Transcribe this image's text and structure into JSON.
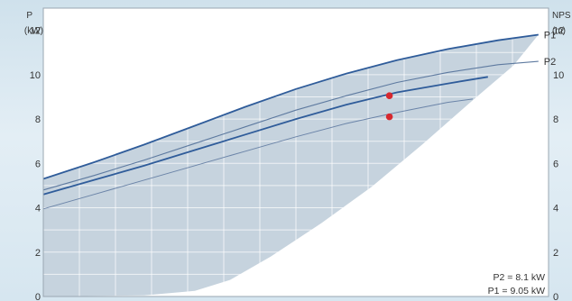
{
  "chart_data": {
    "type": "line",
    "left_axis": {
      "label_line1": "P",
      "label_line2": "(kW)",
      "ticks": [
        "0",
        "2",
        "4",
        "6",
        "8",
        "10",
        "12"
      ],
      "ylim": [
        0,
        13
      ]
    },
    "right_axis": {
      "label_line1": "NPS",
      "label_line2": "(m)",
      "ticks": [
        "0",
        "2",
        "4",
        "6",
        "8",
        "10",
        "12"
      ],
      "ylim": [
        0,
        13
      ]
    },
    "xlim": [
      0,
      1
    ],
    "grid": true,
    "envelope": {
      "upper": [
        [
          0,
          5.3
        ],
        [
          0.1,
          6.05
        ],
        [
          0.2,
          6.85
        ],
        [
          0.3,
          7.7
        ],
        [
          0.4,
          8.55
        ],
        [
          0.5,
          9.35
        ],
        [
          0.6,
          10.05
        ],
        [
          0.7,
          10.65
        ],
        [
          0.8,
          11.15
        ],
        [
          0.9,
          11.55
        ],
        [
          0.98,
          11.8
        ]
      ],
      "lower": [
        [
          0,
          0
        ],
        [
          0.2,
          0.05
        ],
        [
          0.3,
          0.25
        ],
        [
          0.37,
          0.75
        ],
        [
          0.45,
          1.8
        ],
        [
          0.55,
          3.3
        ],
        [
          0.65,
          4.95
        ],
        [
          0.75,
          6.85
        ],
        [
          0.85,
          8.85
        ],
        [
          0.93,
          10.4
        ],
        [
          0.98,
          11.8
        ]
      ]
    },
    "series": [
      {
        "name": "P1",
        "label": "P1",
        "color": "#2f5c9a",
        "width": 1.8,
        "points": [
          [
            0,
            5.3
          ],
          [
            0.1,
            6.05
          ],
          [
            0.2,
            6.85
          ],
          [
            0.3,
            7.7
          ],
          [
            0.4,
            8.55
          ],
          [
            0.5,
            9.35
          ],
          [
            0.6,
            10.05
          ],
          [
            0.7,
            10.65
          ],
          [
            0.8,
            11.15
          ],
          [
            0.9,
            11.55
          ],
          [
            0.98,
            11.8
          ]
        ]
      },
      {
        "name": "P2",
        "label": "P2",
        "color": "#5e7aa0",
        "width": 1.1,
        "points": [
          [
            0,
            4.8
          ],
          [
            0.1,
            5.45
          ],
          [
            0.2,
            6.15
          ],
          [
            0.3,
            6.9
          ],
          [
            0.4,
            7.65
          ],
          [
            0.5,
            8.4
          ],
          [
            0.6,
            9.05
          ],
          [
            0.7,
            9.65
          ],
          [
            0.8,
            10.1
          ],
          [
            0.9,
            10.45
          ],
          [
            0.98,
            10.6
          ]
        ]
      },
      {
        "name": "",
        "label": "",
        "color": "#2f5c9a",
        "width": 1.8,
        "points": [
          [
            0,
            4.6
          ],
          [
            0.1,
            5.25
          ],
          [
            0.2,
            5.9
          ],
          [
            0.3,
            6.6
          ],
          [
            0.4,
            7.3
          ],
          [
            0.5,
            8.0
          ],
          [
            0.6,
            8.65
          ],
          [
            0.7,
            9.2
          ],
          [
            0.8,
            9.6
          ],
          [
            0.88,
            9.9
          ]
        ]
      },
      {
        "name": "",
        "label": "",
        "color": "#6b84a8",
        "width": 1.0,
        "points": [
          [
            0,
            3.95
          ],
          [
            0.1,
            4.6
          ],
          [
            0.2,
            5.25
          ],
          [
            0.3,
            5.9
          ],
          [
            0.4,
            6.55
          ],
          [
            0.5,
            7.2
          ],
          [
            0.6,
            7.8
          ],
          [
            0.7,
            8.3
          ],
          [
            0.8,
            8.75
          ],
          [
            0.85,
            8.9
          ]
        ]
      }
    ],
    "points": [
      {
        "x": 0.685,
        "y": 9.05,
        "color": "#d7282f"
      },
      {
        "x": 0.685,
        "y": 8.1,
        "color": "#d7282f"
      }
    ],
    "readouts": [
      "P2 = 8.1 kW",
      "P1 = 9.05 kW"
    ]
  }
}
